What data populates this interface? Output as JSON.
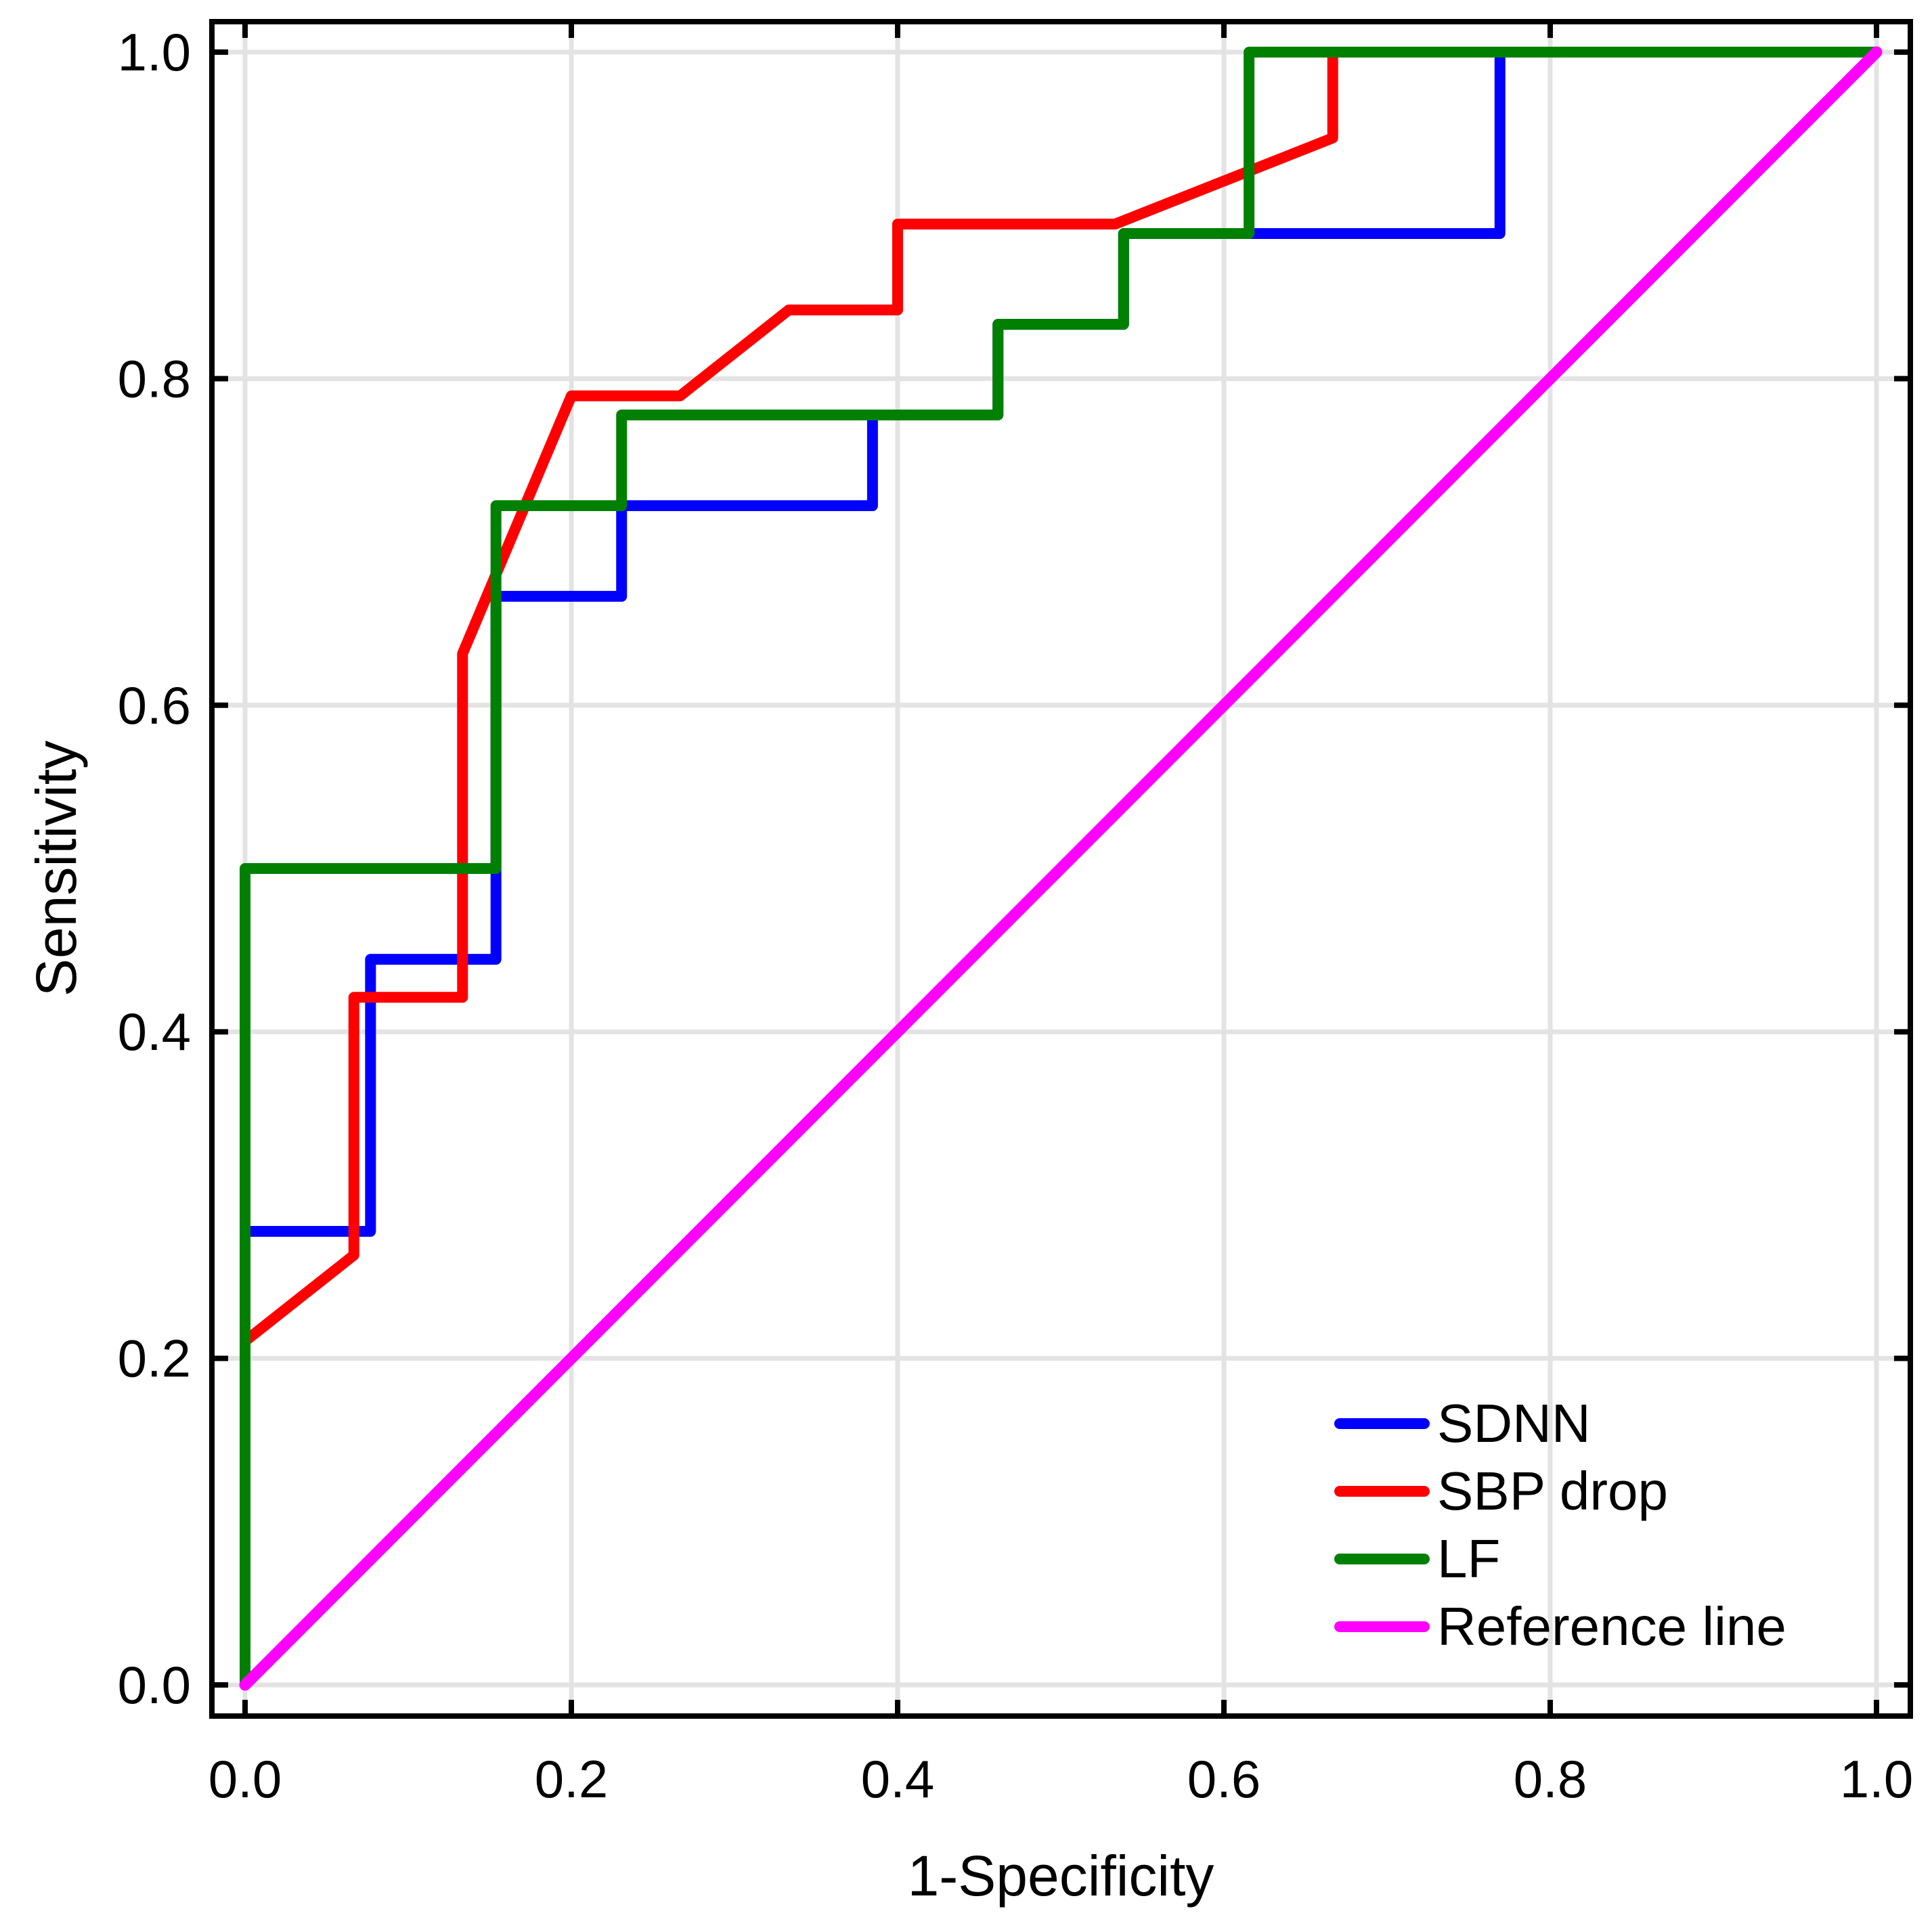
{
  "chart_data": {
    "type": "line",
    "subtype": "roc-curves",
    "title": "",
    "xlabel": "1-Specificity",
    "ylabel": "Sensitivity",
    "xlim": [
      0.0,
      1.0
    ],
    "ylim": [
      0.0,
      1.0
    ],
    "grid": true,
    "grid_color": "#e3e3e3",
    "frame_color": "#000000",
    "background_color": "#ffffff",
    "legend_position": "lower right",
    "x_ticks": [
      0.0,
      0.2,
      0.4,
      0.6,
      0.8,
      1.0
    ],
    "y_ticks": [
      0.0,
      0.2,
      0.4,
      0.6,
      0.8,
      1.0
    ],
    "x_tick_labels": [
      "0.0",
      "0.2",
      "0.4",
      "0.6",
      "0.8",
      "1.0"
    ],
    "y_tick_labels": [
      "0.0",
      "0.2",
      "0.4",
      "0.6",
      "0.8",
      "1.0"
    ],
    "series": [
      {
        "name": "SDNN",
        "color": "#0000ff",
        "width": 16,
        "points": [
          [
            0,
            0
          ],
          [
            0,
            0.2778
          ],
          [
            0.0769,
            0.2778
          ],
          [
            0.0769,
            0.4444
          ],
          [
            0.1538,
            0.4444
          ],
          [
            0.1538,
            0.6667
          ],
          [
            0.2308,
            0.6667
          ],
          [
            0.2308,
            0.7222
          ],
          [
            0.3846,
            0.7222
          ],
          [
            0.3846,
            0.7778
          ],
          [
            0.4615,
            0.7778
          ],
          [
            0.4615,
            0.8333
          ],
          [
            0.5385,
            0.8333
          ],
          [
            0.5385,
            0.8889
          ],
          [
            0.7692,
            0.8889
          ],
          [
            0.7692,
            1.0
          ],
          [
            1.0,
            1.0
          ]
        ]
      },
      {
        "name": "SBP drop",
        "color": "#ff0000",
        "width": 16,
        "points": [
          [
            0,
            0
          ],
          [
            0,
            0.2105
          ],
          [
            0.0667,
            0.2632
          ],
          [
            0.0667,
            0.4211
          ],
          [
            0.1333,
            0.4211
          ],
          [
            0.1333,
            0.6316
          ],
          [
            0.2,
            0.7895
          ],
          [
            0.2667,
            0.7895
          ],
          [
            0.3333,
            0.8421
          ],
          [
            0.4,
            0.8421
          ],
          [
            0.4,
            0.8947
          ],
          [
            0.5333,
            0.8947
          ],
          [
            0.6667,
            0.9474
          ],
          [
            0.6667,
            1.0
          ],
          [
            1.0,
            1.0
          ]
        ]
      },
      {
        "name": "LF",
        "color": "#008000",
        "width": 16,
        "points": [
          [
            0,
            0
          ],
          [
            0,
            0.5
          ],
          [
            0.1538,
            0.5
          ],
          [
            0.1538,
            0.7222
          ],
          [
            0.2308,
            0.7222
          ],
          [
            0.2308,
            0.7778
          ],
          [
            0.4615,
            0.7778
          ],
          [
            0.4615,
            0.8333
          ],
          [
            0.5385,
            0.8333
          ],
          [
            0.5385,
            0.8889
          ],
          [
            0.6154,
            0.8889
          ],
          [
            0.6154,
            1.0
          ],
          [
            1.0,
            1.0
          ]
        ]
      },
      {
        "name": "Reference line",
        "color": "#ff00ff",
        "width": 17,
        "points": [
          [
            0,
            0
          ],
          [
            1.0,
            1.0
          ]
        ]
      }
    ]
  }
}
